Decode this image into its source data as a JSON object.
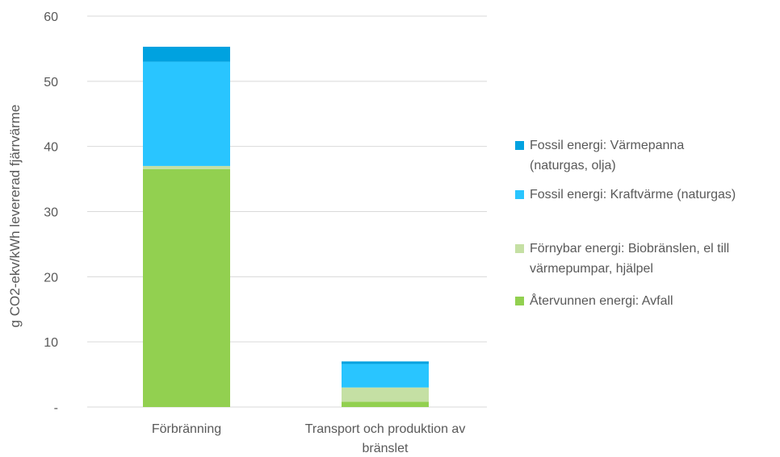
{
  "chart_data": {
    "type": "bar",
    "stacked": true,
    "categories": [
      [
        "Förbränning"
      ],
      [
        "Transport och produktion av",
        "bränslet"
      ]
    ],
    "ylabel": "g CO2-ekv/kWh levererad fjärrvärme",
    "ylim": [
      0,
      60
    ],
    "yticks": [
      "-",
      "10",
      "20",
      "30",
      "40",
      "50",
      "60"
    ],
    "grid": true,
    "legend_position": "right",
    "series": [
      {
        "name": [
          "Återvunnen energi: Avfall"
        ],
        "color": "#92D050",
        "values": [
          36.5,
          0.8
        ]
      },
      {
        "name": [
          "Förnybar energi: Biobränslen, el till",
          "värmepumpar, hjälpel"
        ],
        "color": "#C5E0A4",
        "values": [
          0.5,
          2.2
        ]
      },
      {
        "name": [
          "Fossil energi: Kraftvärme (naturgas)"
        ],
        "color": "#29C5FF",
        "values": [
          16.0,
          3.6
        ]
      },
      {
        "name": [
          "Fossil energi: Värmepanna",
          "(naturgas, olja)"
        ],
        "color": "#00A2E0",
        "values": [
          2.3,
          0.4
        ]
      }
    ]
  }
}
